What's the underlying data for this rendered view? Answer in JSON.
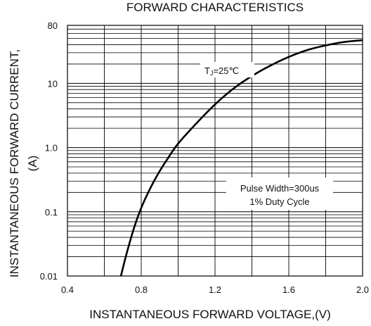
{
  "chart_data": {
    "type": "line",
    "title": "FORWARD CHARACTERISTICS",
    "xlabel": "INSTANTANEOUS FORWARD VOLTAGE,(V)",
    "ylabel_line1": "INSTANTANEOUS FORWARD CURRENT,",
    "ylabel_line2": "(A)",
    "xlim": [
      0.4,
      2.0
    ],
    "ylim": [
      0.01,
      80
    ],
    "yscale": "log",
    "grid": true,
    "x_ticks": [
      0.4,
      0.8,
      1.2,
      1.6,
      2.0
    ],
    "x_tick_labels": [
      "0.4",
      "0.8",
      "1.2",
      "1.6",
      "2.0"
    ],
    "y_ticks": [
      0.01,
      0.1,
      1.0,
      10,
      80
    ],
    "y_tick_labels": [
      "0.01",
      "0.1",
      "1.0",
      "10",
      "80"
    ],
    "series": [
      {
        "x": [
          0.69,
          0.72,
          0.76,
          0.8,
          0.85,
          0.9,
          0.95,
          1.0,
          1.1,
          1.2,
          1.3,
          1.4,
          1.5,
          1.6,
          1.7,
          1.8,
          1.9,
          2.0
        ],
        "y": [
          0.01,
          0.022,
          0.055,
          0.115,
          0.235,
          0.43,
          0.72,
          1.15,
          2.4,
          4.7,
          8.3,
          13.0,
          18.9,
          25.8,
          33.0,
          39.0,
          44.0,
          47.0
        ]
      }
    ],
    "annotations": {
      "tj_main": "T",
      "tj_sub": "J",
      "tj_rest": "=25℃",
      "pulse_line1": "Pulse Width=300us",
      "pulse_line2": "1% Duty Cycle"
    }
  }
}
